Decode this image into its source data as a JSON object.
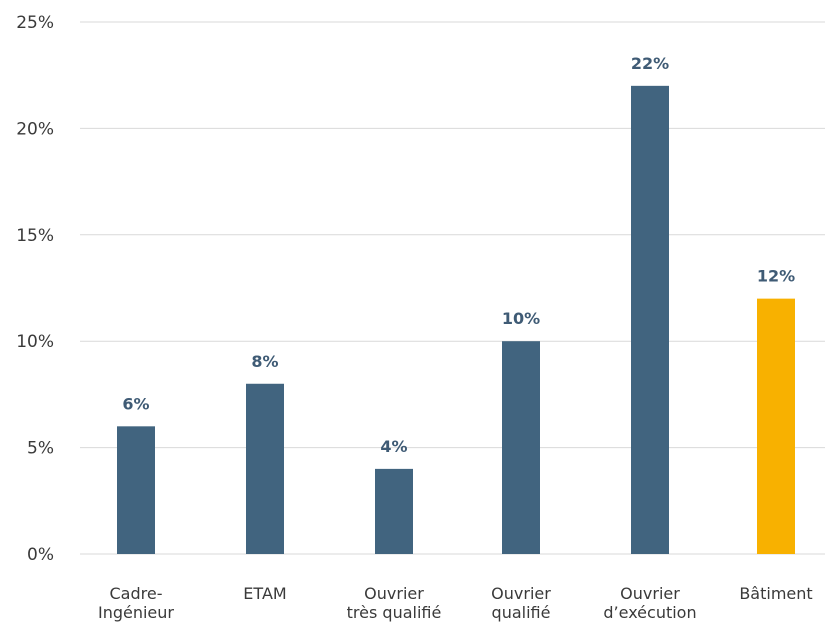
{
  "chart_data": {
    "type": "bar",
    "categories": [
      [
        "Cadre-",
        "Ingénieur"
      ],
      [
        "ETAM"
      ],
      [
        "Ouvrier",
        "très qualifié"
      ],
      [
        "Ouvrier",
        "qualifié"
      ],
      [
        "Ouvrier",
        "d’exécution"
      ],
      [
        "Bâtiment"
      ]
    ],
    "values": [
      6,
      8,
      4,
      10,
      22,
      12
    ],
    "data_labels": [
      "6%",
      "8%",
      "4%",
      "10%",
      "22%",
      "12%"
    ],
    "bar_colors": [
      "#41647f",
      "#41647f",
      "#41647f",
      "#41647f",
      "#41647f",
      "#f8b100"
    ],
    "ylim": [
      0,
      25
    ],
    "yticks": [
      0,
      5,
      10,
      15,
      20,
      25
    ],
    "ytick_labels": [
      "0%",
      "5%",
      "10%",
      "15%",
      "20%",
      "25%"
    ],
    "grid": true,
    "legend": "none"
  }
}
